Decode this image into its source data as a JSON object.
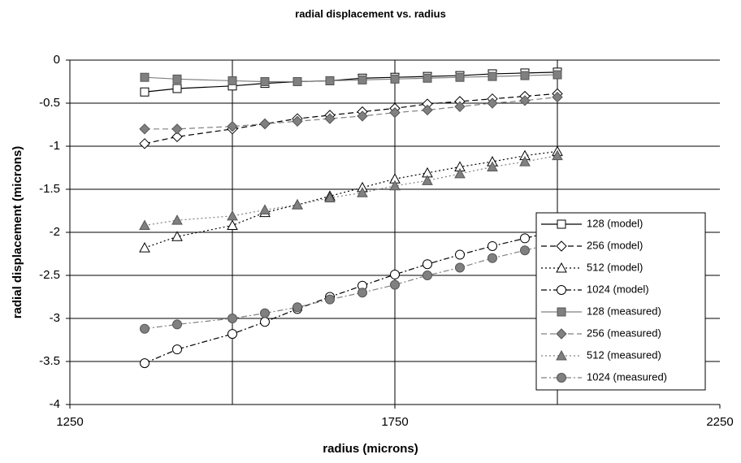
{
  "chart_data": {
    "type": "line",
    "title": "radial displacement vs. radius",
    "x_label": "radius (microns)",
    "y_label": "radial displacement (microns)",
    "x": [
      1365,
      1415,
      1500,
      1550,
      1600,
      1650,
      1700,
      1750,
      1800,
      1850,
      1900,
      1950,
      2000
    ],
    "xlim": [
      1250,
      2250
    ],
    "xticks": [
      1250,
      1750,
      2250
    ],
    "xgridlines": [
      1500,
      1750,
      2000
    ],
    "ylim": [
      -4,
      0
    ],
    "yticks": [
      0,
      -0.5,
      -1,
      -1.5,
      -2,
      -2.5,
      -3,
      -3.5,
      -4
    ],
    "grid": true,
    "legend": "right",
    "series": [
      {
        "name": "128 (model)",
        "color": "#000000",
        "marker": "square",
        "marker_fill": "#ffffff",
        "dash": "solid",
        "values": [
          -0.37,
          -0.33,
          -0.3,
          -0.27,
          -0.25,
          -0.24,
          -0.21,
          -0.2,
          -0.19,
          -0.18,
          -0.16,
          -0.15,
          -0.14
        ]
      },
      {
        "name": "256 (model)",
        "color": "#000000",
        "marker": "diamond",
        "marker_fill": "#ffffff",
        "dash": "dash",
        "values": [
          -0.97,
          -0.89,
          -0.8,
          -0.74,
          -0.68,
          -0.64,
          -0.6,
          -0.56,
          -0.51,
          -0.48,
          -0.45,
          -0.42,
          -0.39
        ]
      },
      {
        "name": "512 (model)",
        "color": "#000000",
        "marker": "triangle",
        "marker_fill": "#ffffff",
        "dash": "dot",
        "values": [
          -2.18,
          -2.05,
          -1.92,
          -1.77,
          -1.68,
          -1.58,
          -1.48,
          -1.38,
          -1.31,
          -1.24,
          -1.18,
          -1.11,
          -1.06
        ]
      },
      {
        "name": "1024 (model)",
        "color": "#000000",
        "marker": "circle",
        "marker_fill": "#ffffff",
        "dash": "dashdot",
        "values": [
          -3.52,
          -3.36,
          -3.18,
          -3.04,
          -2.89,
          -2.75,
          -2.62,
          -2.49,
          -2.37,
          -2.26,
          -2.16,
          -2.07,
          -1.98
        ]
      },
      {
        "name": "128 (measured)",
        "color": "#808080",
        "marker": "square",
        "marker_fill": "#808080",
        "dash": "solid",
        "values": [
          -0.2,
          -0.22,
          -0.24,
          -0.25,
          -0.25,
          -0.24,
          -0.23,
          -0.22,
          -0.21,
          -0.2,
          -0.19,
          -0.18,
          -0.17
        ]
      },
      {
        "name": "256 (measured)",
        "color": "#808080",
        "marker": "diamond",
        "marker_fill": "#808080",
        "dash": "dash",
        "values": [
          -0.8,
          -0.8,
          -0.77,
          -0.74,
          -0.71,
          -0.68,
          -0.65,
          -0.61,
          -0.58,
          -0.54,
          -0.5,
          -0.47,
          -0.43
        ]
      },
      {
        "name": "512 (measured)",
        "color": "#808080",
        "marker": "triangle",
        "marker_fill": "#808080",
        "dash": "dot",
        "values": [
          -1.92,
          -1.86,
          -1.81,
          -1.74,
          -1.68,
          -1.6,
          -1.54,
          -1.46,
          -1.4,
          -1.32,
          -1.24,
          -1.18,
          -1.11
        ]
      },
      {
        "name": "1024 (measured)",
        "color": "#808080",
        "marker": "circle",
        "marker_fill": "#808080",
        "dash": "dashdot",
        "values": [
          -3.12,
          -3.07,
          -3.0,
          -2.94,
          -2.87,
          -2.78,
          -2.7,
          -2.61,
          -2.5,
          -2.41,
          -2.3,
          -2.21,
          -2.12
        ]
      }
    ]
  }
}
